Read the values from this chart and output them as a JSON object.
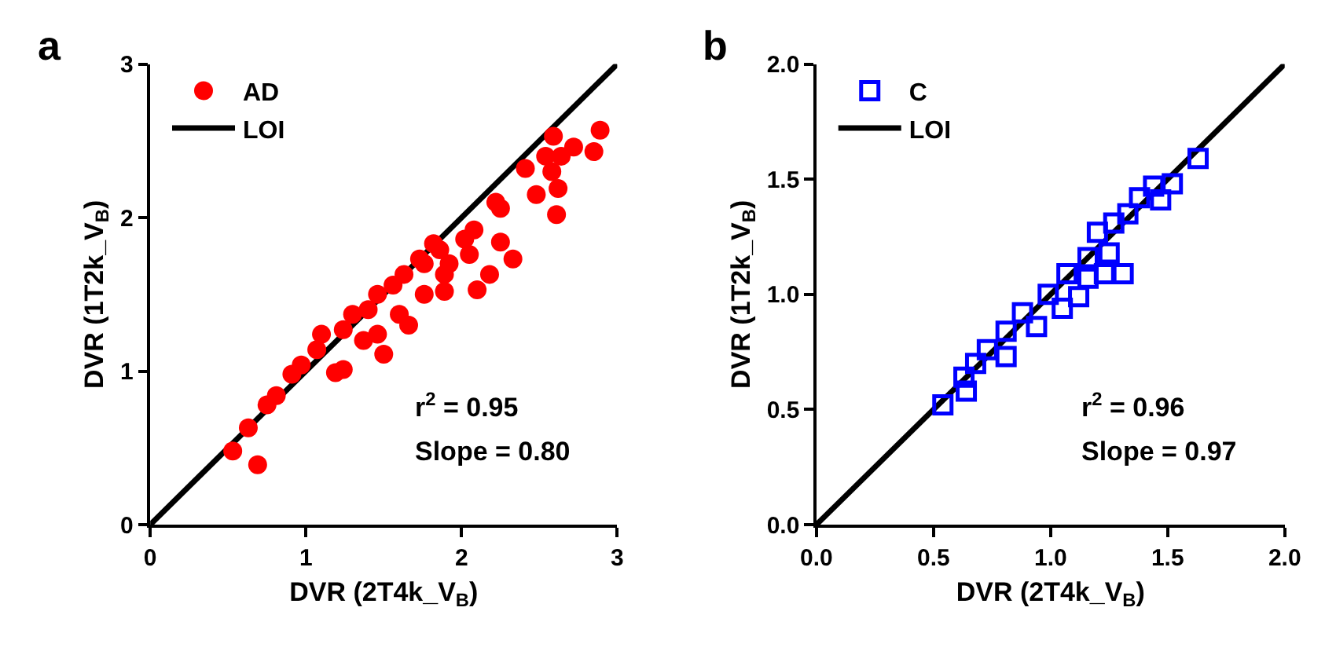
{
  "chart_data": [
    {
      "type": "scatter",
      "title": "a",
      "xlabel": "DVR (2T4k_V$_{B}$)",
      "ylabel": "DVR (1T2k_V$_{B}$)",
      "xlim": [
        0,
        3
      ],
      "ylim": [
        0,
        3
      ],
      "xticks": [
        0,
        1,
        2,
        3
      ],
      "yticks": [
        0,
        1,
        2,
        3
      ],
      "grid": false,
      "legend": "top left",
      "annotations": [
        "r$^{2}$ = 0.95",
        "Slope = 0.80"
      ],
      "series": [
        {
          "name": "AD",
          "color": "#ff0000",
          "marker": "circle",
          "x": [
            0.53,
            0.69,
            0.63,
            0.75,
            0.91,
            1.07,
            1.24,
            1.19,
            1.5,
            1.24,
            1.4,
            1.56,
            1.66,
            1.73,
            1.82,
            1.89,
            2.02,
            2.08,
            2.1,
            2.18,
            2.25,
            2.33,
            2.22,
            2.25,
            2.41,
            2.48,
            2.58,
            2.61,
            2.62,
            2.59,
            2.54,
            2.64,
            2.72,
            2.85,
            2.89,
            0.97,
            0.81,
            1.1,
            1.3,
            1.46,
            1.63,
            1.76,
            1.86,
            1.92,
            2.05,
            1.46,
            1.6,
            1.37,
            1.89,
            1.76
          ],
          "values": [
            0.48,
            0.39,
            0.63,
            0.78,
            0.98,
            1.14,
            1.01,
            0.99,
            1.11,
            1.27,
            1.4,
            1.56,
            1.3,
            1.73,
            1.83,
            1.52,
            1.86,
            1.92,
            1.53,
            1.63,
            1.84,
            1.73,
            2.1,
            2.06,
            2.32,
            2.15,
            2.3,
            2.02,
            2.19,
            2.53,
            2.4,
            2.4,
            2.46,
            2.43,
            2.57,
            1.04,
            0.84,
            1.24,
            1.37,
            1.5,
            1.63,
            1.7,
            1.79,
            1.7,
            1.76,
            1.24,
            1.37,
            1.2,
            1.63,
            1.5
          ]
        },
        {
          "name": "LOI",
          "type": "line",
          "color": "#000000",
          "x": [
            0,
            3
          ],
          "values": [
            0,
            3
          ]
        }
      ]
    },
    {
      "type": "scatter",
      "title": "b",
      "xlabel": "DVR (2T4k_V$_{B}$)",
      "ylabel": "DVR (1T2k_V$_{B}$)",
      "xlim": [
        0,
        2
      ],
      "ylim": [
        0,
        2
      ],
      "xticks": [
        {
          "value": 0,
          "label": "0.0"
        },
        0.5,
        {
          "value": 1,
          "label": "1.0"
        },
        1.5,
        {
          "value": 2,
          "label": "2.0"
        }
      ],
      "yticks": [
        {
          "value": 0,
          "label": "0.0"
        },
        0.5,
        {
          "value": 1,
          "label": "1.0"
        },
        1.5,
        {
          "value": 2,
          "label": "2.0"
        }
      ],
      "grid": false,
      "legend": "top left",
      "annotations": [
        "r$^{2}$ = 0.96",
        "Slope = 0.97"
      ],
      "series": [
        {
          "name": "C",
          "color": "#0000ff",
          "marker": "square",
          "x": [
            0.54,
            1.63,
            1.31,
            0.64,
            0.63,
            0.68,
            0.73,
            0.81,
            0.81,
            0.94,
            0.88,
            0.99,
            1.05,
            1.12,
            1.07,
            1.16,
            1.23,
            1.2,
            1.27,
            1.33,
            1.38,
            1.44,
            1.52,
            1.47,
            1.16,
            1.25
          ],
          "values": [
            0.52,
            1.59,
            1.09,
            0.58,
            0.64,
            0.7,
            0.76,
            0.84,
            0.73,
            0.86,
            0.92,
            1.0,
            0.94,
            0.99,
            1.09,
            1.16,
            1.09,
            1.27,
            1.31,
            1.35,
            1.42,
            1.47,
            1.48,
            1.41,
            1.07,
            1.18
          ]
        },
        {
          "name": "LOI",
          "type": "line",
          "color": "#000000",
          "x": [
            0,
            2
          ],
          "values": [
            0,
            2
          ]
        }
      ]
    }
  ]
}
